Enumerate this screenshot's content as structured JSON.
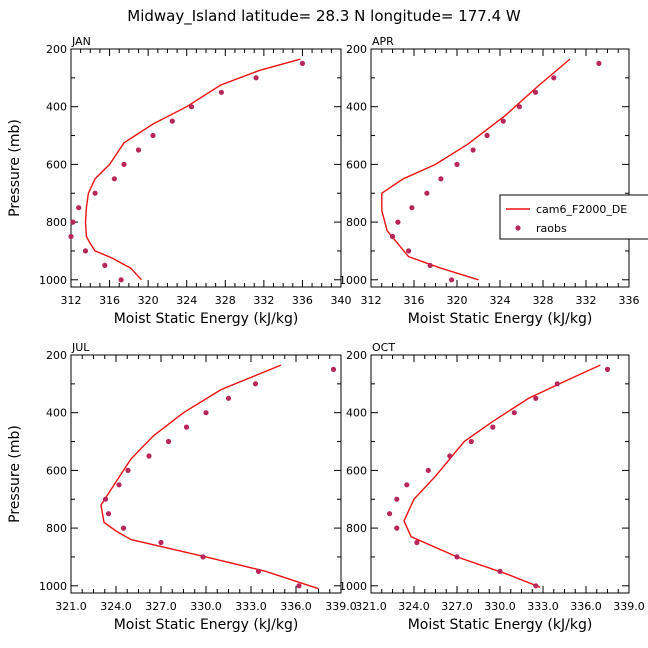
{
  "figure": {
    "title": "Midway_Island  latitude= 28.3 N longitude= 177.4 W"
  },
  "colors": {
    "model": "#ee1111",
    "raobs": "#b8275a",
    "axes": "#000000"
  },
  "legend": {
    "entries": [
      "cam6_F2000_DE",
      "raobs"
    ],
    "panel": "APR",
    "placement": "right"
  },
  "chart_data": [
    {
      "type": "line",
      "panel_label": "JAN",
      "xlabel": "Moist Static Energy (kJ/kg)",
      "ylabel": "Pressure (mb)",
      "xlim": [
        312,
        340
      ],
      "ylim": [
        1025,
        200
      ],
      "xticks": [
        312,
        316,
        320,
        324,
        328,
        332,
        336,
        340
      ],
      "xtick_labels": [
        "312",
        "316",
        "320",
        "324",
        "328",
        "332",
        "336",
        "340"
      ],
      "yticks": [
        200,
        400,
        600,
        800,
        1000
      ],
      "ytick_labels": [
        "200",
        "400",
        "600",
        "800",
        "1000"
      ],
      "series": [
        {
          "name": "cam6_F2000_DE",
          "style": "line",
          "x": [
            335.8,
            331.5,
            327.5,
            324.0,
            320.5,
            317.5,
            316.0,
            314.5,
            313.8,
            313.6,
            313.5,
            313.6,
            314.0,
            314.5,
            316.3,
            318.2,
            319.3
          ],
          "y": [
            235,
            275,
            325,
            400,
            460,
            525,
            600,
            650,
            700,
            750,
            800,
            850,
            875,
            900,
            925,
            960,
            1000
          ]
        },
        {
          "name": "raobs",
          "style": "marker",
          "x": [
            336.0,
            331.2,
            327.6,
            324.5,
            322.5,
            320.5,
            319.0,
            317.5,
            316.5,
            314.5,
            312.8,
            312.2,
            312.0,
            313.5,
            315.5,
            317.2
          ],
          "y": [
            250,
            300,
            350,
            400,
            450,
            500,
            550,
            600,
            650,
            700,
            750,
            800,
            850,
            900,
            950,
            1000
          ]
        }
      ]
    },
    {
      "type": "line",
      "panel_label": "APR",
      "xlabel": "Moist Static Energy (kJ/kg)",
      "ylabel": "",
      "xlim": [
        312,
        336
      ],
      "ylim": [
        1025,
        200
      ],
      "xticks": [
        312,
        316,
        320,
        324,
        328,
        332,
        336
      ],
      "xtick_labels": [
        "312",
        "316",
        "320",
        "324",
        "328",
        "332",
        "336"
      ],
      "yticks": [
        200,
        400,
        600,
        800,
        1000
      ],
      "ytick_labels": [
        "200",
        "400",
        "600",
        "800",
        "1000"
      ],
      "series": [
        {
          "name": "cam6_F2000_DE",
          "style": "line",
          "x": [
            330.5,
            327.5,
            324.5,
            321.0,
            318.0,
            315.0,
            313.0,
            313.0,
            313.5,
            315.5,
            318.5,
            322.0
          ],
          "y": [
            235,
            330,
            430,
            530,
            600,
            650,
            700,
            760,
            830,
            920,
            960,
            1000
          ]
        },
        {
          "name": "raobs",
          "style": "marker",
          "x": [
            333.2,
            329.0,
            327.3,
            325.8,
            324.3,
            322.8,
            321.5,
            320.0,
            318.5,
            317.2,
            315.8,
            314.5,
            314.0,
            315.5,
            317.5,
            319.5
          ],
          "y": [
            250,
            300,
            350,
            400,
            450,
            500,
            550,
            600,
            650,
            700,
            750,
            800,
            850,
            900,
            950,
            1000
          ]
        }
      ]
    },
    {
      "type": "line",
      "panel_label": "JUL",
      "xlabel": "Moist Static Energy (kJ/kg)",
      "ylabel": "Pressure (mb)",
      "xlim": [
        321,
        339
      ],
      "ylim": [
        1025,
        200
      ],
      "xticks": [
        321,
        324,
        327,
        330,
        333,
        336,
        339
      ],
      "xtick_labels": [
        "321.0",
        "324.0",
        "327.0",
        "330.0",
        "333.0",
        "336.0",
        "339.0"
      ],
      "yticks": [
        200,
        400,
        600,
        800,
        1000
      ],
      "ytick_labels": [
        "200",
        "400",
        "600",
        "800",
        "1000"
      ],
      "series": [
        {
          "name": "cam6_F2000_DE",
          "style": "line",
          "x": [
            335.0,
            331.0,
            328.5,
            326.5,
            325.0,
            324.0,
            323.0,
            323.2,
            324.0,
            325.0,
            330.0,
            334.0,
            337.5
          ],
          "y": [
            235,
            320,
            400,
            480,
            560,
            640,
            720,
            780,
            810,
            840,
            900,
            950,
            1010
          ]
        },
        {
          "name": "raobs",
          "style": "marker",
          "x": [
            338.5,
            333.3,
            331.5,
            330.0,
            328.7,
            327.5,
            326.2,
            324.8,
            324.2,
            323.3,
            323.5,
            324.5,
            327.0,
            329.8,
            333.5,
            336.2
          ],
          "y": [
            250,
            300,
            350,
            400,
            450,
            500,
            550,
            600,
            650,
            700,
            750,
            800,
            850,
            900,
            950,
            1000
          ]
        }
      ]
    },
    {
      "type": "line",
      "panel_label": "OCT",
      "xlabel": "Moist Static Energy (kJ/kg)",
      "ylabel": "",
      "xlim": [
        321,
        339
      ],
      "ylim": [
        1025,
        200
      ],
      "xticks": [
        321,
        324,
        327,
        330,
        333,
        336,
        339
      ],
      "xtick_labels": [
        "321.0",
        "324.0",
        "327.0",
        "330.0",
        "333.0",
        "336.0",
        "339.0"
      ],
      "yticks": [
        200,
        400,
        600,
        800,
        1000
      ],
      "ytick_labels": [
        "200",
        "400",
        "600",
        "800",
        "1000"
      ],
      "series": [
        {
          "name": "cam6_F2000_DE",
          "style": "line",
          "x": [
            337.0,
            335.0,
            332.0,
            329.5,
            327.5,
            326.5,
            325.5,
            324.0,
            323.3,
            323.8,
            327.0,
            330.5,
            332.8
          ],
          "y": [
            235,
            280,
            350,
            430,
            500,
            560,
            620,
            700,
            775,
            830,
            900,
            960,
            1005
          ]
        },
        {
          "name": "raobs",
          "style": "marker",
          "x": [
            337.5,
            334.0,
            332.5,
            331.0,
            329.5,
            328.0,
            326.5,
            325.0,
            323.5,
            322.8,
            322.3,
            322.8,
            324.2,
            327.0,
            330.0,
            332.5
          ],
          "y": [
            250,
            300,
            350,
            400,
            450,
            500,
            550,
            600,
            650,
            700,
            750,
            800,
            850,
            900,
            950,
            1000
          ]
        }
      ]
    }
  ]
}
